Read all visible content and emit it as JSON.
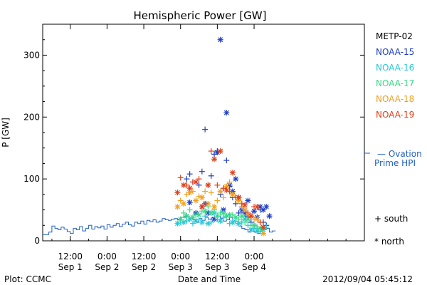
{
  "chart_data": {
    "type": "scatter",
    "title": "Hemispheric Power [GW]",
    "xlabel": "Date and Time",
    "ylabel": "P [GW]",
    "footer_left": "Plot: CCMC",
    "footer_right": "2012/09/04 05:45:12",
    "x_unit": "hours from 2012-08-31 00:00 UT",
    "xlim": [
      3,
      108
    ],
    "ylim": [
      0,
      350
    ],
    "y_ticks": [
      0,
      100,
      200,
      300
    ],
    "x_ticks": [
      {
        "x": 12,
        "label1": "12:00",
        "label2": "Sep 1"
      },
      {
        "x": 24,
        "label1": "0:00",
        "label2": "Sep 2"
      },
      {
        "x": 36,
        "label1": "12:00",
        "label2": "Sep 2"
      },
      {
        "x": 48,
        "label1": "0:00",
        "label2": "Sep 3"
      },
      {
        "x": 60,
        "label1": "12:00",
        "label2": "Sep 3"
      },
      {
        "x": 72,
        "label1": "0:00",
        "label2": "Sep 4"
      }
    ],
    "legend": {
      "satellites": [
        {
          "name": "METP-02",
          "color": "#000000"
        },
        {
          "name": "NOAA-15",
          "color": "#1f3fbf"
        },
        {
          "name": "NOAA-16",
          "color": "#28c8d8"
        },
        {
          "name": "NOAA-17",
          "color": "#3ad98a"
        },
        {
          "name": "NOAA-18",
          "color": "#f0a020"
        },
        {
          "name": "NOAA-19",
          "color": "#e0401a"
        }
      ],
      "ovation_line1": "— Ovation",
      "ovation_line2": "Prime HPI",
      "ovation_color": "#1f5fbf",
      "south_label": "+ south",
      "north_label": "* north"
    },
    "ovation": {
      "name": "Ovation Prime HPI",
      "x": [
        3,
        5,
        6,
        7,
        8,
        9,
        10,
        11,
        12,
        13,
        14,
        15,
        16,
        17,
        18,
        19,
        20,
        21,
        22,
        23,
        24,
        25,
        26,
        27,
        28,
        29,
        30,
        31,
        32,
        33,
        34,
        35,
        36,
        37,
        38,
        39,
        40,
        41,
        42,
        43,
        44,
        45,
        46,
        47,
        48,
        49,
        50,
        51,
        52,
        53,
        54,
        55,
        56,
        57,
        58,
        59,
        60,
        61,
        62,
        63,
        64,
        65,
        66,
        67,
        68,
        69,
        70,
        71,
        72,
        73,
        74,
        75,
        76,
        77,
        78
      ],
      "y": [
        10,
        14,
        24,
        20,
        18,
        22,
        19,
        15,
        12,
        20,
        18,
        23,
        16,
        20,
        25,
        19,
        23,
        21,
        24,
        19,
        26,
        22,
        25,
        28,
        23,
        27,
        30,
        26,
        24,
        30,
        28,
        32,
        27,
        33,
        31,
        34,
        30,
        32,
        36,
        34,
        33,
        35,
        36,
        34,
        38,
        39,
        35,
        36,
        34,
        30,
        36,
        33,
        38,
        35,
        37,
        34,
        40,
        36,
        32,
        34,
        38,
        30,
        28,
        24,
        20,
        18,
        14,
        16,
        14,
        12,
        16,
        18,
        20,
        14,
        16
      ]
    },
    "series": [
      {
        "name": "NOAA-15",
        "marker": "north",
        "x": [
          50,
          51,
          53,
          55,
          56,
          57,
          59,
          60,
          61,
          62,
          63,
          64,
          65,
          66,
          67,
          68,
          69,
          70,
          71,
          72,
          73,
          74,
          75,
          76,
          77
        ],
        "y": [
          40,
          62,
          45,
          55,
          60,
          45,
          35,
          143,
          325,
          50,
          207,
          90,
          80,
          100,
          70,
          50,
          45,
          65,
          40,
          48,
          38,
          55,
          50,
          55,
          40
        ]
      },
      {
        "name": "NOAA-15",
        "marker": "south",
        "x": [
          50,
          51,
          52,
          54,
          55,
          56,
          57,
          58,
          59,
          60,
          61,
          62,
          63,
          64,
          65,
          66,
          67,
          68,
          69,
          70,
          71,
          72,
          73,
          74,
          75,
          76
        ],
        "y": [
          100,
          108,
          95,
          90,
          112,
          180,
          90,
          105,
          140,
          145,
          75,
          85,
          130,
          88,
          70,
          60,
          45,
          55,
          40,
          38,
          30,
          25,
          22,
          50,
          30,
          25
        ]
      },
      {
        "name": "NOAA-16",
        "marker": "north",
        "x": [
          47,
          49,
          51,
          53,
          55,
          57,
          59,
          61,
          63,
          65,
          67,
          69,
          71,
          73,
          75
        ],
        "y": [
          28,
          30,
          35,
          32,
          30,
          28,
          45,
          32,
          40,
          30,
          28,
          35,
          18,
          16,
          18
        ]
      },
      {
        "name": "NOAA-16",
        "marker": "south",
        "x": [
          48,
          50,
          52,
          54,
          56,
          58,
          60,
          62,
          64,
          66,
          68,
          70,
          72,
          74,
          76
        ],
        "y": [
          30,
          32,
          28,
          35,
          40,
          30,
          35,
          38,
          28,
          32,
          30,
          25,
          20,
          15,
          22
        ]
      },
      {
        "name": "NOAA-17",
        "marker": "north",
        "x": [
          48,
          50,
          52,
          54,
          56,
          58,
          60,
          62,
          64,
          66,
          68,
          70,
          72,
          74
        ],
        "y": [
          35,
          40,
          38,
          42,
          48,
          45,
          40,
          45,
          42,
          38,
          40,
          35,
          25,
          20
        ]
      },
      {
        "name": "NOAA-17",
        "marker": "south",
        "x": [
          49,
          51,
          53,
          55,
          57,
          59,
          61,
          63,
          65,
          67,
          69,
          71,
          73,
          75
        ],
        "y": [
          45,
          50,
          42,
          48,
          55,
          50,
          45,
          40,
          42,
          35,
          30,
          25,
          22,
          20
        ]
      },
      {
        "name": "NOAA-18",
        "marker": "north",
        "x": [
          47,
          49,
          51,
          53,
          55,
          57,
          59,
          61,
          63,
          65,
          67,
          69,
          71,
          73,
          75
        ],
        "y": [
          55,
          60,
          78,
          65,
          70,
          60,
          55,
          80,
          88,
          75,
          65,
          50,
          40,
          35,
          12
        ]
      },
      {
        "name": "NOAA-18",
        "marker": "south",
        "x": [
          48,
          50,
          52,
          54,
          56,
          58,
          60,
          62,
          64,
          66,
          68,
          70,
          72,
          74
        ],
        "y": [
          65,
          75,
          80,
          72,
          80,
          78,
          65,
          70,
          95,
          70,
          55,
          42,
          35,
          30
        ]
      },
      {
        "name": "NOAA-19",
        "marker": "north",
        "x": [
          47,
          49,
          51,
          53,
          55,
          57,
          59,
          61,
          63,
          65,
          67,
          69,
          71,
          73,
          75
        ],
        "y": [
          78,
          90,
          85,
          95,
          55,
          90,
          132,
          145,
          82,
          110,
          70,
          58,
          40,
          55,
          22
        ]
      },
      {
        "name": "NOAA-19",
        "marker": "south",
        "x": [
          48,
          50,
          52,
          54,
          56,
          58,
          60,
          62,
          64,
          66,
          68,
          70,
          72,
          74
        ],
        "y": [
          102,
          90,
          95,
          100,
          60,
          145,
          90,
          85,
          80,
          70,
          60,
          45,
          55,
          30
        ]
      }
    ]
  }
}
